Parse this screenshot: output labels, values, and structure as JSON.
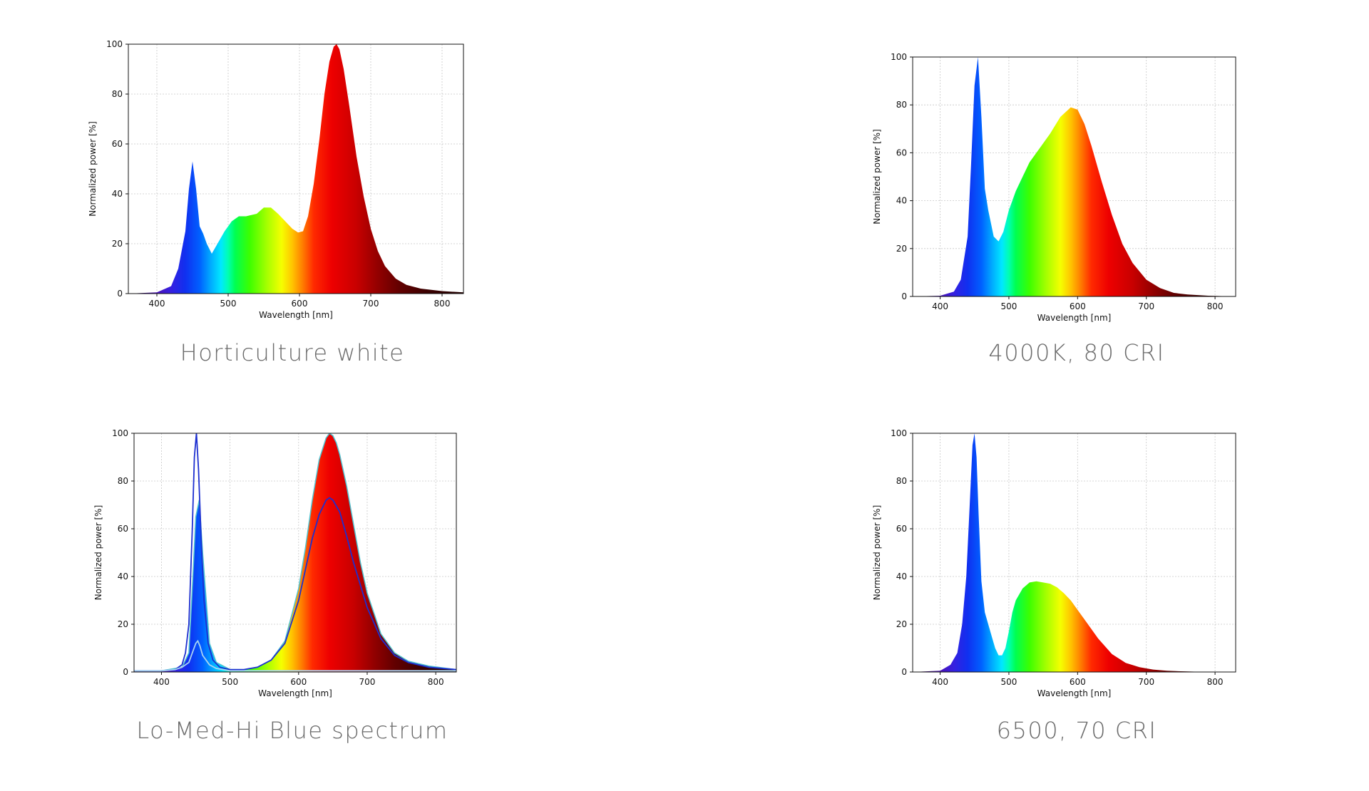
{
  "chart_data": [
    {
      "type": "area",
      "title": "Horticulture white",
      "xlabel": "Wavelength [nm]",
      "ylabel": "Normalized power [%]",
      "xlim": [
        360,
        830
      ],
      "ylim": [
        0,
        100
      ],
      "xticks": [
        "400",
        "500",
        "600",
        "700",
        "800"
      ],
      "yticks": [
        "0",
        "20",
        "40",
        "60",
        "80",
        "100"
      ],
      "grid": true,
      "series": [
        {
          "fill": "spectrum",
          "x": [
            360,
            400,
            420,
            430,
            440,
            445,
            450,
            455,
            460,
            465,
            470,
            477,
            485,
            495,
            505,
            515,
            525,
            540,
            550,
            560,
            570,
            580,
            590,
            598,
            605,
            612,
            620,
            628,
            635,
            642,
            648,
            652,
            656,
            662,
            670,
            680,
            690,
            700,
            710,
            720,
            735,
            750,
            770,
            800,
            830
          ],
          "y": [
            0,
            0.5,
            3,
            10,
            25,
            42,
            53,
            42,
            27,
            24,
            20,
            16,
            20,
            25,
            29,
            31,
            31,
            32,
            34.5,
            34.5,
            32,
            29,
            26,
            24.5,
            25,
            31,
            44,
            62,
            80,
            93,
            99,
            100,
            98,
            90,
            75,
            55,
            39,
            26,
            17,
            11,
            6,
            3.5,
            2,
            1,
            0.5
          ]
        }
      ]
    },
    {
      "type": "area",
      "title": "4000K, 80 CRI",
      "xlabel": "Wavelength [nm]",
      "ylabel": "Normalized power [%]",
      "xlim": [
        360,
        830
      ],
      "ylim": [
        0,
        100
      ],
      "xticks": [
        "400",
        "500",
        "600",
        "700",
        "800"
      ],
      "yticks": [
        "0",
        "20",
        "40",
        "60",
        "80",
        "100"
      ],
      "grid": true,
      "series": [
        {
          "fill": "spectrum",
          "x": [
            360,
            400,
            420,
            430,
            440,
            445,
            450,
            455,
            460,
            465,
            470,
            478,
            485,
            492,
            500,
            510,
            520,
            530,
            545,
            560,
            575,
            590,
            600,
            610,
            620,
            635,
            650,
            665,
            680,
            700,
            720,
            740,
            760,
            790,
            830
          ],
          "y": [
            0,
            0.3,
            2,
            7,
            25,
            55,
            88,
            100,
            75,
            45,
            36,
            25,
            23,
            27,
            36,
            44,
            50,
            56,
            62,
            68,
            75,
            79,
            78,
            72,
            63,
            48,
            34,
            22,
            14,
            7,
            3.5,
            1.5,
            0.8,
            0.3,
            0
          ]
        }
      ]
    },
    {
      "type": "area",
      "title": "Lo-Med-Hi Blue spectrum",
      "xlabel": "Wavelength [nm]",
      "ylabel": "Normalized power [%]",
      "xlim": [
        360,
        830
      ],
      "ylim": [
        0,
        100
      ],
      "xticks": [
        "400",
        "500",
        "600",
        "700",
        "800"
      ],
      "yticks": [
        "0",
        "20",
        "40",
        "60",
        "80",
        "100"
      ],
      "grid": true,
      "series": [
        {
          "name": "",
          "fill": "spectrum",
          "color": "#4fc3d0",
          "x": [
            360,
            400,
            430,
            440,
            445,
            450,
            455,
            460,
            470,
            480,
            500,
            520,
            540,
            560,
            580,
            600,
            610,
            620,
            630,
            640,
            645,
            650,
            655,
            660,
            670,
            680,
            690,
            700,
            720,
            740,
            760,
            790,
            830
          ],
          "y": [
            0.5,
            0.5,
            2,
            8,
            35,
            65,
            72,
            50,
            12,
            4,
            1,
            1,
            2,
            5,
            13,
            35,
            52,
            72,
            89,
            98,
            100,
            99,
            96,
            91,
            78,
            62,
            46,
            33,
            16,
            8,
            4.5,
            2.5,
            1
          ]
        },
        {
          "name": "",
          "color": "#1d2fd0",
          "x": [
            360,
            400,
            420,
            430,
            435,
            440,
            445,
            448,
            451,
            454,
            458,
            462,
            468,
            475,
            485,
            500,
            520,
            540,
            560,
            580,
            600,
            620,
            630,
            640,
            645,
            650,
            660,
            670,
            680,
            700,
            720,
            740,
            760,
            790,
            830
          ],
          "y": [
            0.5,
            0.5,
            1,
            3,
            8,
            20,
            60,
            90,
            100,
            85,
            55,
            30,
            12,
            5,
            2,
            1,
            1,
            2,
            5,
            12,
            30,
            56,
            66,
            72,
            73,
            72,
            67,
            57,
            46,
            27,
            14,
            7,
            4,
            2,
            1
          ]
        },
        {
          "name": "",
          "color": "#a9d4f2",
          "x": [
            360,
            400,
            420,
            430,
            440,
            445,
            450,
            453,
            456,
            460,
            465,
            470,
            480,
            490,
            500,
            520,
            560,
            600,
            640,
            680,
            720,
            760,
            800,
            830
          ],
          "y": [
            0.5,
            0.5,
            1,
            2,
            4,
            8,
            12,
            13,
            11,
            7,
            5,
            3,
            1.5,
            1,
            0.5,
            0.5,
            0.5,
            0.5,
            0.5,
            0.5,
            0.5,
            0.5,
            0.5,
            0.5
          ]
        }
      ]
    },
    {
      "type": "area",
      "title": "6500, 70 CRI",
      "xlabel": "Wavelength [nm]",
      "ylabel": "Normalized power [%]",
      "xlim": [
        360,
        830
      ],
      "ylim": [
        0,
        100
      ],
      "xticks": [
        "400",
        "500",
        "600",
        "700",
        "800"
      ],
      "yticks": [
        "0",
        "20",
        "40",
        "60",
        "80",
        "100"
      ],
      "grid": true,
      "series": [
        {
          "fill": "spectrum",
          "x": [
            360,
            400,
            415,
            425,
            432,
            438,
            443,
            447,
            450,
            453,
            456,
            460,
            465,
            470,
            475,
            480,
            485,
            490,
            495,
            500,
            505,
            510,
            520,
            530,
            540,
            550,
            560,
            570,
            580,
            590,
            600,
            615,
            630,
            650,
            670,
            690,
            710,
            730,
            750,
            780,
            810,
            830
          ],
          "y": [
            0,
            0.5,
            3,
            8,
            20,
            40,
            70,
            95,
            100,
            90,
            66,
            38,
            25,
            20,
            15,
            10,
            7,
            7,
            10,
            17,
            25,
            30,
            35,
            37.5,
            38,
            37.5,
            37,
            35.5,
            33,
            30,
            26,
            20,
            14,
            7.5,
            3.8,
            2,
            1,
            0.5,
            0.3,
            0.1,
            0,
            0
          ]
        }
      ]
    }
  ]
}
